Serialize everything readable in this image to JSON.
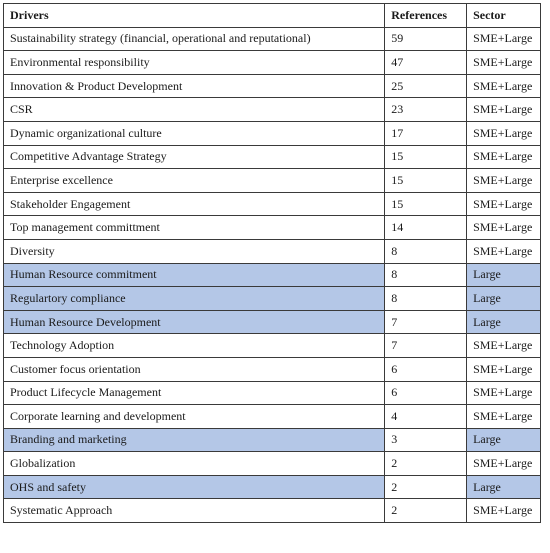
{
  "table": {
    "headers": [
      "Drivers",
      "References",
      "Sector"
    ],
    "rows": [
      {
        "driver": "Sustainability strategy (financial, operational and reputational)",
        "references": "59",
        "sector": "SME+Large",
        "highlighted": false
      },
      {
        "driver": "Environmental responsibility",
        "references": "47",
        "sector": "SME+Large",
        "highlighted": false
      },
      {
        "driver": "Innovation & Product Development",
        "references": "25",
        "sector": "SME+Large",
        "highlighted": false
      },
      {
        "driver": "CSR",
        "references": "23",
        "sector": "SME+Large",
        "highlighted": false
      },
      {
        "driver": "Dynamic organizational culture",
        "references": "17",
        "sector": "SME+Large",
        "highlighted": false
      },
      {
        "driver": "Competitive Advantage Strategy",
        "references": "15",
        "sector": "SME+Large",
        "highlighted": false
      },
      {
        "driver": "Enterprise excellence",
        "references": "15",
        "sector": "SME+Large",
        "highlighted": false
      },
      {
        "driver": "Stakeholder Engagement",
        "references": "15",
        "sector": "SME+Large",
        "highlighted": false
      },
      {
        "driver": "Top management committment",
        "references": "14",
        "sector": "SME+Large",
        "highlighted": false
      },
      {
        "driver": "Diversity",
        "references": "8",
        "sector": "SME+Large",
        "highlighted": false
      },
      {
        "driver": "Human Resource commitment",
        "references": "8",
        "sector": "Large",
        "highlighted": true
      },
      {
        "driver": "Regulartory compliance",
        "references": "8",
        "sector": "Large",
        "highlighted": true
      },
      {
        "driver": "Human Resource Development",
        "references": "7",
        "sector": "Large",
        "highlighted": true
      },
      {
        "driver": "Technology Adoption",
        "references": "7",
        "sector": "SME+Large",
        "highlighted": false
      },
      {
        "driver": "Customer focus orientation",
        "references": "6",
        "sector": "SME+Large",
        "highlighted": false
      },
      {
        "driver": "Product Lifecycle Management",
        "references": "6",
        "sector": "SME+Large",
        "highlighted": false
      },
      {
        "driver": "Corporate learning and development",
        "references": "4",
        "sector": "SME+Large",
        "highlighted": false
      },
      {
        "driver": "Branding and marketing",
        "references": "3",
        "sector": "Large",
        "highlighted": true
      },
      {
        "driver": "Globalization",
        "references": "2",
        "sector": "SME+Large",
        "highlighted": false
      },
      {
        "driver": "OHS and safety",
        "references": "2",
        "sector": "Large",
        "highlighted": true
      },
      {
        "driver": "Systematic Approach",
        "references": "2",
        "sector": "SME+Large",
        "highlighted": false
      }
    ]
  },
  "colors": {
    "highlight": "#b4c7e7",
    "border": "#3a3a3a"
  }
}
